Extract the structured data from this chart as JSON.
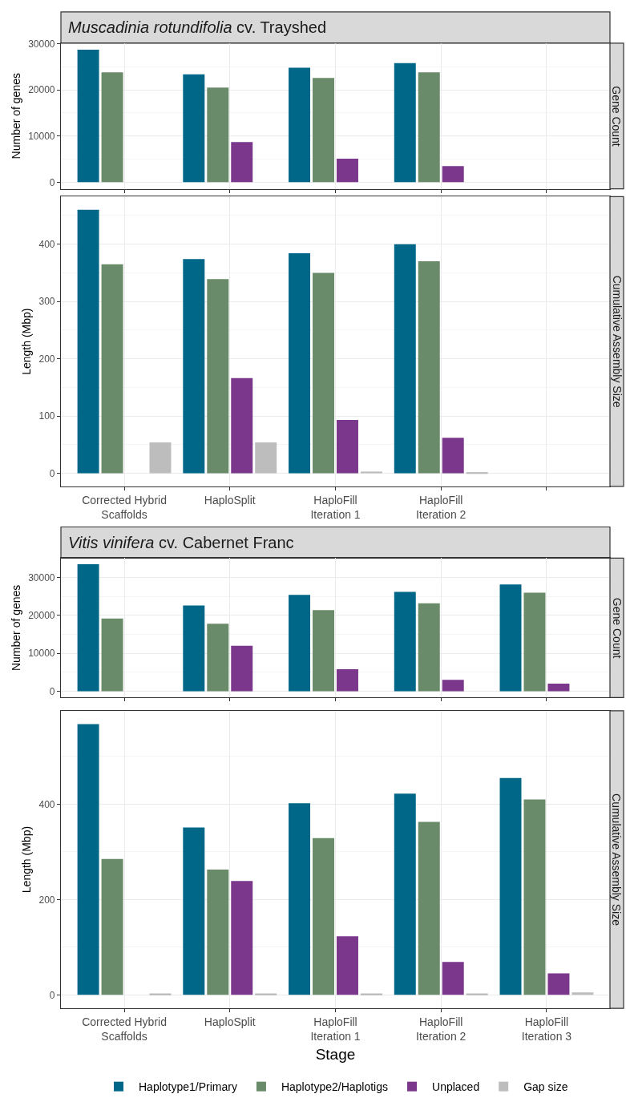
{
  "chart_data": [
    {
      "type": "bar",
      "title": "Muscadinia rotundifolia cv. Trayshed",
      "ylabel": "Number of genes",
      "annotations": [
        "Gene Count"
      ],
      "categories": [
        null,
        null,
        null,
        null,
        null
      ],
      "ylim": [
        -1435,
        30135
      ],
      "yticks": [
        0,
        10000,
        20000,
        30000
      ],
      "grid": true,
      "legend": false,
      "tick_labels": "y",
      "series": [
        {
          "color": "#006788",
          "values": [
            28700,
            23400,
            24800,
            25800,
            null
          ]
        },
        {
          "color": "#6a8b69",
          "values": [
            23800,
            20500,
            22600,
            23800,
            null
          ]
        },
        {
          "color": "#7b378b",
          "values": [
            null,
            8700,
            5100,
            3500,
            null
          ]
        },
        {
          "color": "#bdbdbd",
          "values": [
            null,
            null,
            null,
            null,
            null
          ]
        }
      ]
    },
    {
      "type": "bar",
      "ylabel": "Length (Mbp)",
      "annotations": [
        "Cumulative Assembly Size"
      ],
      "categories": [
        "Corrected Hybrid\nScaffolds",
        "HaploSplit",
        "HaploFill\nIteration 1",
        "HaploFill\nIteration 2",
        null
      ],
      "ylim": [
        -23,
        483
      ],
      "yticks": [
        0,
        100,
        200,
        300,
        400
      ],
      "grid": true,
      "legend": false,
      "series": [
        {
          "color": "#006788",
          "values": [
            460,
            374,
            384,
            400,
            null
          ]
        },
        {
          "color": "#6a8b69",
          "values": [
            365,
            339,
            350,
            370,
            null
          ]
        },
        {
          "color": "#7b378b",
          "values": [
            null,
            166,
            93,
            62,
            null
          ]
        },
        {
          "color": "#bdbdbd",
          "values": [
            54,
            54,
            3,
            2,
            null
          ]
        }
      ]
    },
    {
      "type": "bar",
      "title": "Vitis vinifera cv. Cabernet Franc",
      "ylabel": "Number of genes",
      "annotations": [
        "Gene Count"
      ],
      "categories": [
        null,
        null,
        null,
        null,
        null
      ],
      "ylim": [
        -1673,
        35133
      ],
      "yticks": [
        0,
        10000,
        20000,
        30000
      ],
      "grid": true,
      "legend": false,
      "tick_labels": "y",
      "series": [
        {
          "color": "#006788",
          "values": [
            33500,
            22600,
            25400,
            26200,
            28200
          ]
        },
        {
          "color": "#6a8b69",
          "values": [
            19200,
            17800,
            21400,
            23200,
            26000
          ]
        },
        {
          "color": "#7b378b",
          "values": [
            null,
            12000,
            5800,
            3000,
            2000
          ]
        },
        {
          "color": "#bdbdbd",
          "values": [
            null,
            null,
            null,
            null,
            null
          ]
        }
      ]
    },
    {
      "type": "bar",
      "ylabel": "Length (Mbp)",
      "xlabel": "Stage",
      "annotations": [
        "Cumulative Assembly Size"
      ],
      "categories": [
        "Corrected Hybrid\nScaffolds",
        "HaploSplit",
        "HaploFill\nIteration 1",
        "HaploFill\nIteration 2",
        "HaploFill\nIteration 3"
      ],
      "ylim": [
        -28.4,
        596
      ],
      "yticks": [
        0,
        200,
        400
      ],
      "grid": true,
      "legend": "bottom",
      "series": [
        {
          "name": "Haplotype1/Primary",
          "color": "#006788",
          "values": [
            568,
            351,
            402,
            422,
            455
          ]
        },
        {
          "name": "Haplotype2/Haplotigs",
          "color": "#6a8b69",
          "values": [
            285,
            263,
            329,
            363,
            410
          ]
        },
        {
          "name": "Unplaced",
          "color": "#7b378b",
          "values": [
            null,
            239,
            123,
            69,
            45
          ]
        },
        {
          "name": "Gap size",
          "color": "#bdbdbd",
          "values": [
            3,
            3,
            3,
            3,
            5
          ]
        }
      ]
    }
  ]
}
